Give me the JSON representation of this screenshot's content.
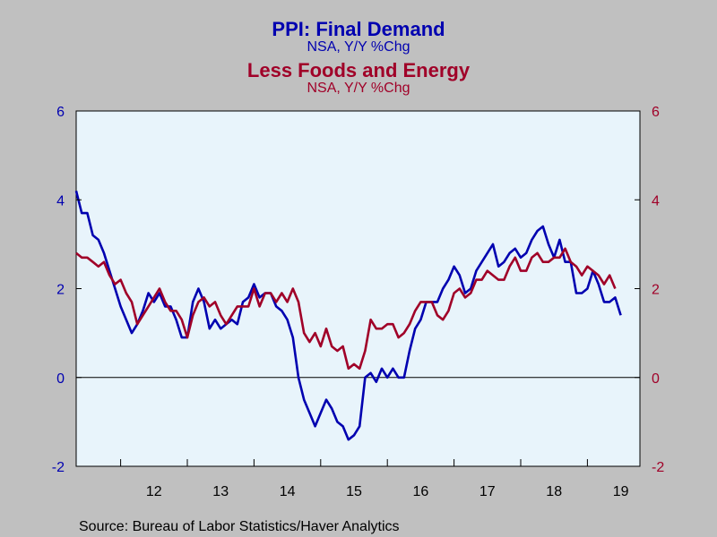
{
  "chart_data": {
    "type": "line",
    "titles": [
      {
        "text": "PPI: Final Demand",
        "color": "#0000b0"
      },
      {
        "text": "Less Foods and Energy",
        "color": "#a00028"
      }
    ],
    "subtitles": [
      {
        "text": "NSA, Y/Y %Chg",
        "color": "#0000b0"
      },
      {
        "text": "NSA, Y/Y %Chg",
        "color": "#a00028"
      }
    ],
    "source": "Source:  Bureau of Labor Statistics/Haver Analytics",
    "x_tick_labels": [
      "12",
      "13",
      "14",
      "15",
      "16",
      "17",
      "18",
      "19"
    ],
    "ylim": [
      -2,
      6
    ],
    "left_y_ticks": [
      "6",
      "4",
      "2",
      "0",
      "-2"
    ],
    "right_y_ticks": [
      "6",
      "4",
      "2",
      "0",
      "-2"
    ],
    "left_axis_color": "#0000b0",
    "right_axis_color": "#a00028",
    "plot_background": "#e8f4fb",
    "page_background": "#c0c0c0",
    "zero_line": true,
    "x_start": "2011-04",
    "series": [
      {
        "color": "#0000b0",
        "values": [
          4.2,
          3.7,
          3.7,
          3.2,
          3.1,
          2.8,
          2.4,
          2.0,
          1.6,
          1.3,
          1.0,
          1.2,
          1.5,
          1.9,
          1.7,
          1.9,
          1.6,
          1.6,
          1.3,
          0.9,
          0.9,
          1.7,
          2.0,
          1.7,
          1.1,
          1.3,
          1.1,
          1.2,
          1.3,
          1.2,
          1.7,
          1.8,
          2.1,
          1.8,
          1.9,
          1.9,
          1.6,
          1.5,
          1.3,
          0.9,
          0.0,
          -0.5,
          -0.8,
          -1.1,
          -0.8,
          -0.5,
          -0.7,
          -1.0,
          -1.1,
          -1.4,
          -1.3,
          -1.1,
          0.0,
          0.1,
          -0.1,
          0.2,
          0.0,
          0.2,
          0.0,
          0.0,
          0.6,
          1.1,
          1.3,
          1.7,
          1.7,
          1.7,
          2.0,
          2.2,
          2.5,
          2.3,
          1.9,
          2.0,
          2.4,
          2.6,
          2.8,
          3.0,
          2.5,
          2.6,
          2.8,
          2.9,
          2.7,
          2.8,
          3.1,
          3.3,
          3.4,
          3.0,
          2.7,
          3.1,
          2.6,
          2.6,
          1.9,
          1.9,
          2.0,
          2.4,
          2.1,
          1.7,
          1.7,
          1.8,
          1.4
        ]
      },
      {
        "color": "#a00028",
        "values": [
          2.8,
          2.7,
          2.7,
          2.6,
          2.5,
          2.6,
          2.3,
          2.1,
          2.2,
          1.9,
          1.7,
          1.2,
          1.4,
          1.6,
          1.8,
          2.0,
          1.7,
          1.5,
          1.5,
          1.3,
          0.9,
          1.4,
          1.7,
          1.8,
          1.6,
          1.7,
          1.4,
          1.2,
          1.4,
          1.6,
          1.6,
          1.6,
          2.0,
          1.6,
          1.9,
          1.9,
          1.7,
          1.9,
          1.7,
          2.0,
          1.7,
          1.0,
          0.8,
          1.0,
          0.7,
          1.1,
          0.7,
          0.6,
          0.7,
          0.2,
          0.3,
          0.2,
          0.6,
          1.3,
          1.1,
          1.1,
          1.2,
          1.2,
          0.9,
          1.0,
          1.2,
          1.5,
          1.7,
          1.7,
          1.7,
          1.4,
          1.3,
          1.5,
          1.9,
          2.0,
          1.8,
          1.9,
          2.2,
          2.2,
          2.4,
          2.3,
          2.2,
          2.2,
          2.5,
          2.7,
          2.4,
          2.4,
          2.7,
          2.8,
          2.6,
          2.6,
          2.7,
          2.7,
          2.9,
          2.6,
          2.5,
          2.3,
          2.5,
          2.4,
          2.3,
          2.1,
          2.3,
          2.0
        ]
      }
    ]
  }
}
